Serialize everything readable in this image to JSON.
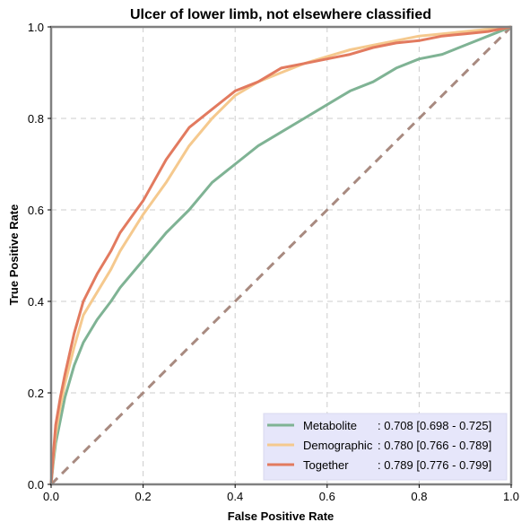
{
  "chart_data": {
    "type": "line",
    "title": "Ulcer of lower limb, not elsewhere classified",
    "xlabel": "False Positive Rate",
    "ylabel": "True Positive Rate",
    "xlim": [
      0,
      1
    ],
    "ylim": [
      0,
      1
    ],
    "xticks": [
      "0.0",
      "0.2",
      "0.4",
      "0.6",
      "0.8",
      "1.0"
    ],
    "yticks": [
      "0.0",
      "0.2",
      "0.4",
      "0.6",
      "0.8",
      "1.0"
    ],
    "grid": true,
    "legend_position": "bottom-right",
    "diagonal": {
      "x": [
        0,
        1
      ],
      "y": [
        0,
        1
      ],
      "color": "#a88a80"
    },
    "series": [
      {
        "name": "Metabolite",
        "legend_name": "Metabolite    ",
        "legend_stat": ": 0.708 [0.698 - 0.725]",
        "color": "#7fb394",
        "x": [
          0,
          0.005,
          0.01,
          0.02,
          0.03,
          0.05,
          0.07,
          0.1,
          0.13,
          0.15,
          0.2,
          0.25,
          0.3,
          0.35,
          0.4,
          0.45,
          0.5,
          0.55,
          0.6,
          0.65,
          0.7,
          0.75,
          0.8,
          0.85,
          0.9,
          0.95,
          1.0
        ],
        "y": [
          0,
          0.05,
          0.09,
          0.14,
          0.19,
          0.26,
          0.31,
          0.36,
          0.4,
          0.43,
          0.49,
          0.55,
          0.6,
          0.66,
          0.7,
          0.74,
          0.77,
          0.8,
          0.83,
          0.86,
          0.88,
          0.91,
          0.93,
          0.94,
          0.96,
          0.98,
          1.0
        ]
      },
      {
        "name": "Demographic",
        "legend_name": "Demographic",
        "legend_stat": ": 0.780 [0.766 - 0.789]",
        "color": "#f5c98e",
        "x": [
          0,
          0.005,
          0.01,
          0.02,
          0.03,
          0.05,
          0.07,
          0.1,
          0.13,
          0.15,
          0.2,
          0.25,
          0.3,
          0.35,
          0.4,
          0.45,
          0.5,
          0.55,
          0.6,
          0.65,
          0.7,
          0.75,
          0.8,
          0.85,
          0.9,
          0.95,
          1.0
        ],
        "y": [
          0,
          0.06,
          0.11,
          0.17,
          0.22,
          0.3,
          0.37,
          0.42,
          0.47,
          0.51,
          0.59,
          0.66,
          0.74,
          0.8,
          0.85,
          0.88,
          0.9,
          0.92,
          0.935,
          0.95,
          0.96,
          0.97,
          0.98,
          0.985,
          0.99,
          0.995,
          1.0
        ]
      },
      {
        "name": "Together",
        "legend_name": "Together      ",
        "legend_stat": ": 0.789 [0.776 - 0.799]",
        "color": "#e27a5f",
        "x": [
          0,
          0.005,
          0.01,
          0.02,
          0.03,
          0.05,
          0.07,
          0.1,
          0.13,
          0.15,
          0.2,
          0.25,
          0.3,
          0.35,
          0.4,
          0.45,
          0.5,
          0.55,
          0.6,
          0.65,
          0.7,
          0.75,
          0.8,
          0.85,
          0.9,
          0.95,
          1.0
        ],
        "y": [
          0,
          0.07,
          0.13,
          0.19,
          0.24,
          0.33,
          0.4,
          0.46,
          0.51,
          0.55,
          0.62,
          0.71,
          0.78,
          0.82,
          0.86,
          0.88,
          0.91,
          0.92,
          0.93,
          0.94,
          0.955,
          0.965,
          0.97,
          0.98,
          0.985,
          0.99,
          1.0
        ]
      }
    ]
  }
}
